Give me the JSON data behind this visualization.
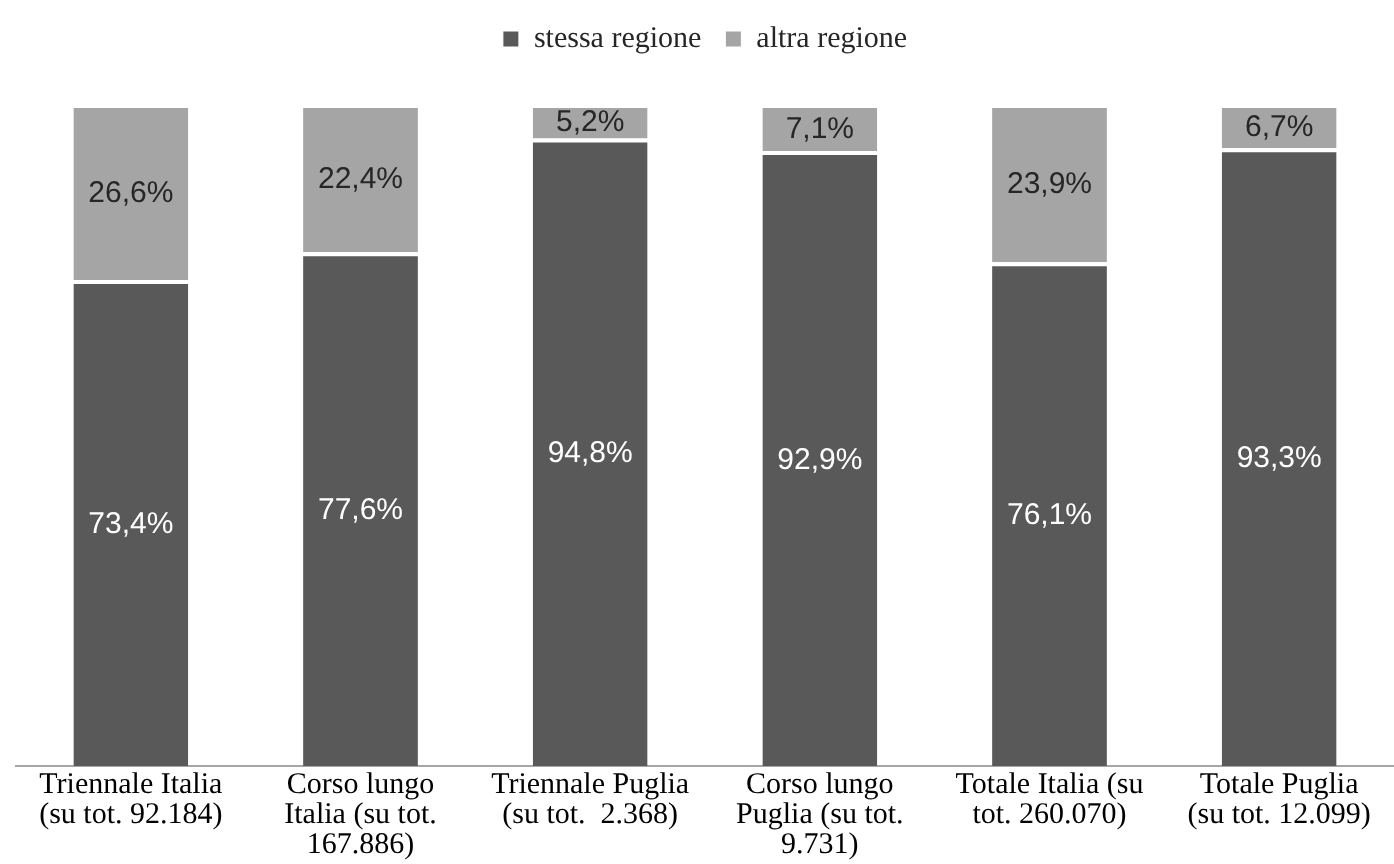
{
  "chart_data": {
    "type": "bar",
    "stacked": true,
    "categories": [
      "Triennale Italia (su tot. 92.184)",
      "Corso lungo Italia (su tot. 167.886)",
      "Triennale Puglia (su tot.  2.368)",
      "Corso lungo Puglia (su tot. 9.731)",
      "Totale Italia (su tot. 260.070)",
      "Totale Puglia (su tot. 12.099)"
    ],
    "series": [
      {
        "name": "stessa regione",
        "color": "#595959",
        "values": [
          73.4,
          77.6,
          94.8,
          92.9,
          76.1,
          93.3
        ],
        "value_labels": [
          "73,4%",
          "77,6%",
          "94,8%",
          "92,9%",
          "76,1%",
          "93,3%"
        ]
      },
      {
        "name": "altra regione",
        "color": "#a5a5a5",
        "values": [
          26.6,
          22.4,
          5.2,
          7.1,
          23.9,
          6.7
        ],
        "value_labels": [
          "26,6%",
          "22,4%",
          "5,2%",
          "7,1%",
          "23,9%",
          "6,7%"
        ]
      }
    ],
    "ylim": [
      0,
      100
    ],
    "tick_labels": "x",
    "grid": false,
    "legend": "top"
  }
}
